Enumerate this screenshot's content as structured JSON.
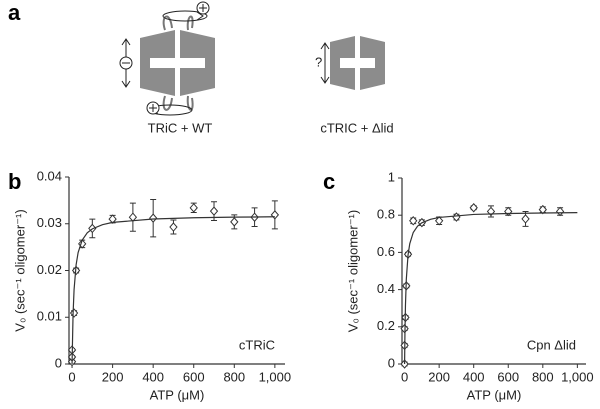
{
  "panel_labels": [
    "a",
    "b",
    "c"
  ],
  "diagram": {
    "labels": [
      "TRiC + WT",
      "cTRIC + Δlid"
    ],
    "question": "?"
  },
  "chart_data": [
    {
      "type": "scatter",
      "annotation": "cTRiC",
      "xlabel": "ATP (μM)",
      "ylabel": "V₀ (sec⁻¹ oligomer⁻¹)",
      "xlim": [
        -15,
        1050
      ],
      "xticks": [
        0,
        200,
        400,
        600,
        800,
        {
          "value": 1000,
          "label": "1,000"
        }
      ],
      "ylim": [
        0,
        0.04
      ],
      "yticks": [
        0,
        0.01,
        0.02,
        0.03,
        0.04
      ],
      "color": "#333333",
      "series": [
        {
          "style": "marker",
          "x": [
            0,
            0,
            0,
            10,
            20,
            50,
            100,
            200,
            300,
            400,
            500,
            600,
            700,
            800,
            900,
            1000
          ],
          "values": [
            0.0005,
            0.0015,
            0.003,
            0.0109,
            0.02,
            0.0257,
            0.029,
            0.031,
            0.0314,
            0.0312,
            0.0293,
            0.0334,
            0.0327,
            0.0304,
            0.0314,
            0.0319
          ],
          "errors": [
            0.0003,
            0.0003,
            0.0003,
            0.0005,
            0.0005,
            0.0008,
            0.002,
            0.0008,
            0.003,
            0.004,
            0.0015,
            0.001,
            0.002,
            0.0015,
            0.002,
            0.003
          ]
        },
        {
          "style": "line",
          "x": [
            0,
            5,
            10,
            20,
            30,
            50,
            75,
            100,
            150,
            200,
            400,
            600,
            800,
            1000
          ],
          "values": [
            0,
            0.0106,
            0.0159,
            0.0212,
            0.02385,
            0.0265,
            0.02806,
            0.02891,
            0.02981,
            0.03029,
            0.03102,
            0.03128,
            0.03141,
            0.03149
          ]
        }
      ]
    },
    {
      "type": "scatter",
      "annotation": "Cpn Δlid",
      "xlabel": "ATP (μM)",
      "ylabel": "V₀ (sec⁻¹ oligomer⁻¹)",
      "xlim": [
        -15,
        1050
      ],
      "xticks": [
        0,
        200,
        400,
        600,
        800,
        {
          "value": 1000,
          "label": "1,000"
        }
      ],
      "ylim": [
        0,
        1
      ],
      "yticks": [
        0,
        0.2,
        0.4,
        0.6,
        0.8,
        1
      ],
      "color": "#333333",
      "series": [
        {
          "style": "marker",
          "x": [
            0,
            0,
            0,
            5,
            10,
            20,
            50,
            100,
            200,
            300,
            400,
            500,
            600,
            700,
            800,
            900
          ],
          "values": [
            0,
            0.1,
            0.19,
            0.25,
            0.42,
            0.59,
            0.77,
            0.76,
            0.77,
            0.79,
            0.84,
            0.82,
            0.82,
            0.78,
            0.83,
            0.82
          ],
          "errors": [
            0.01,
            0.01,
            0.01,
            0.01,
            0.01,
            0.01,
            0.015,
            0.015,
            0.02,
            0.015,
            0.01,
            0.03,
            0.02,
            0.04,
            0.015,
            0.02
          ]
        },
        {
          "style": "line",
          "x": [
            0,
            2,
            5,
            10,
            20,
            30,
            50,
            75,
            100,
            150,
            200,
            400,
            600,
            800,
            1000
          ],
          "values": [
            0,
            0.164,
            0.315,
            0.456,
            0.586,
            0.647,
            0.707,
            0.741,
            0.759,
            0.778,
            0.788,
            0.804,
            0.809,
            0.812,
            0.814
          ]
        }
      ]
    }
  ]
}
